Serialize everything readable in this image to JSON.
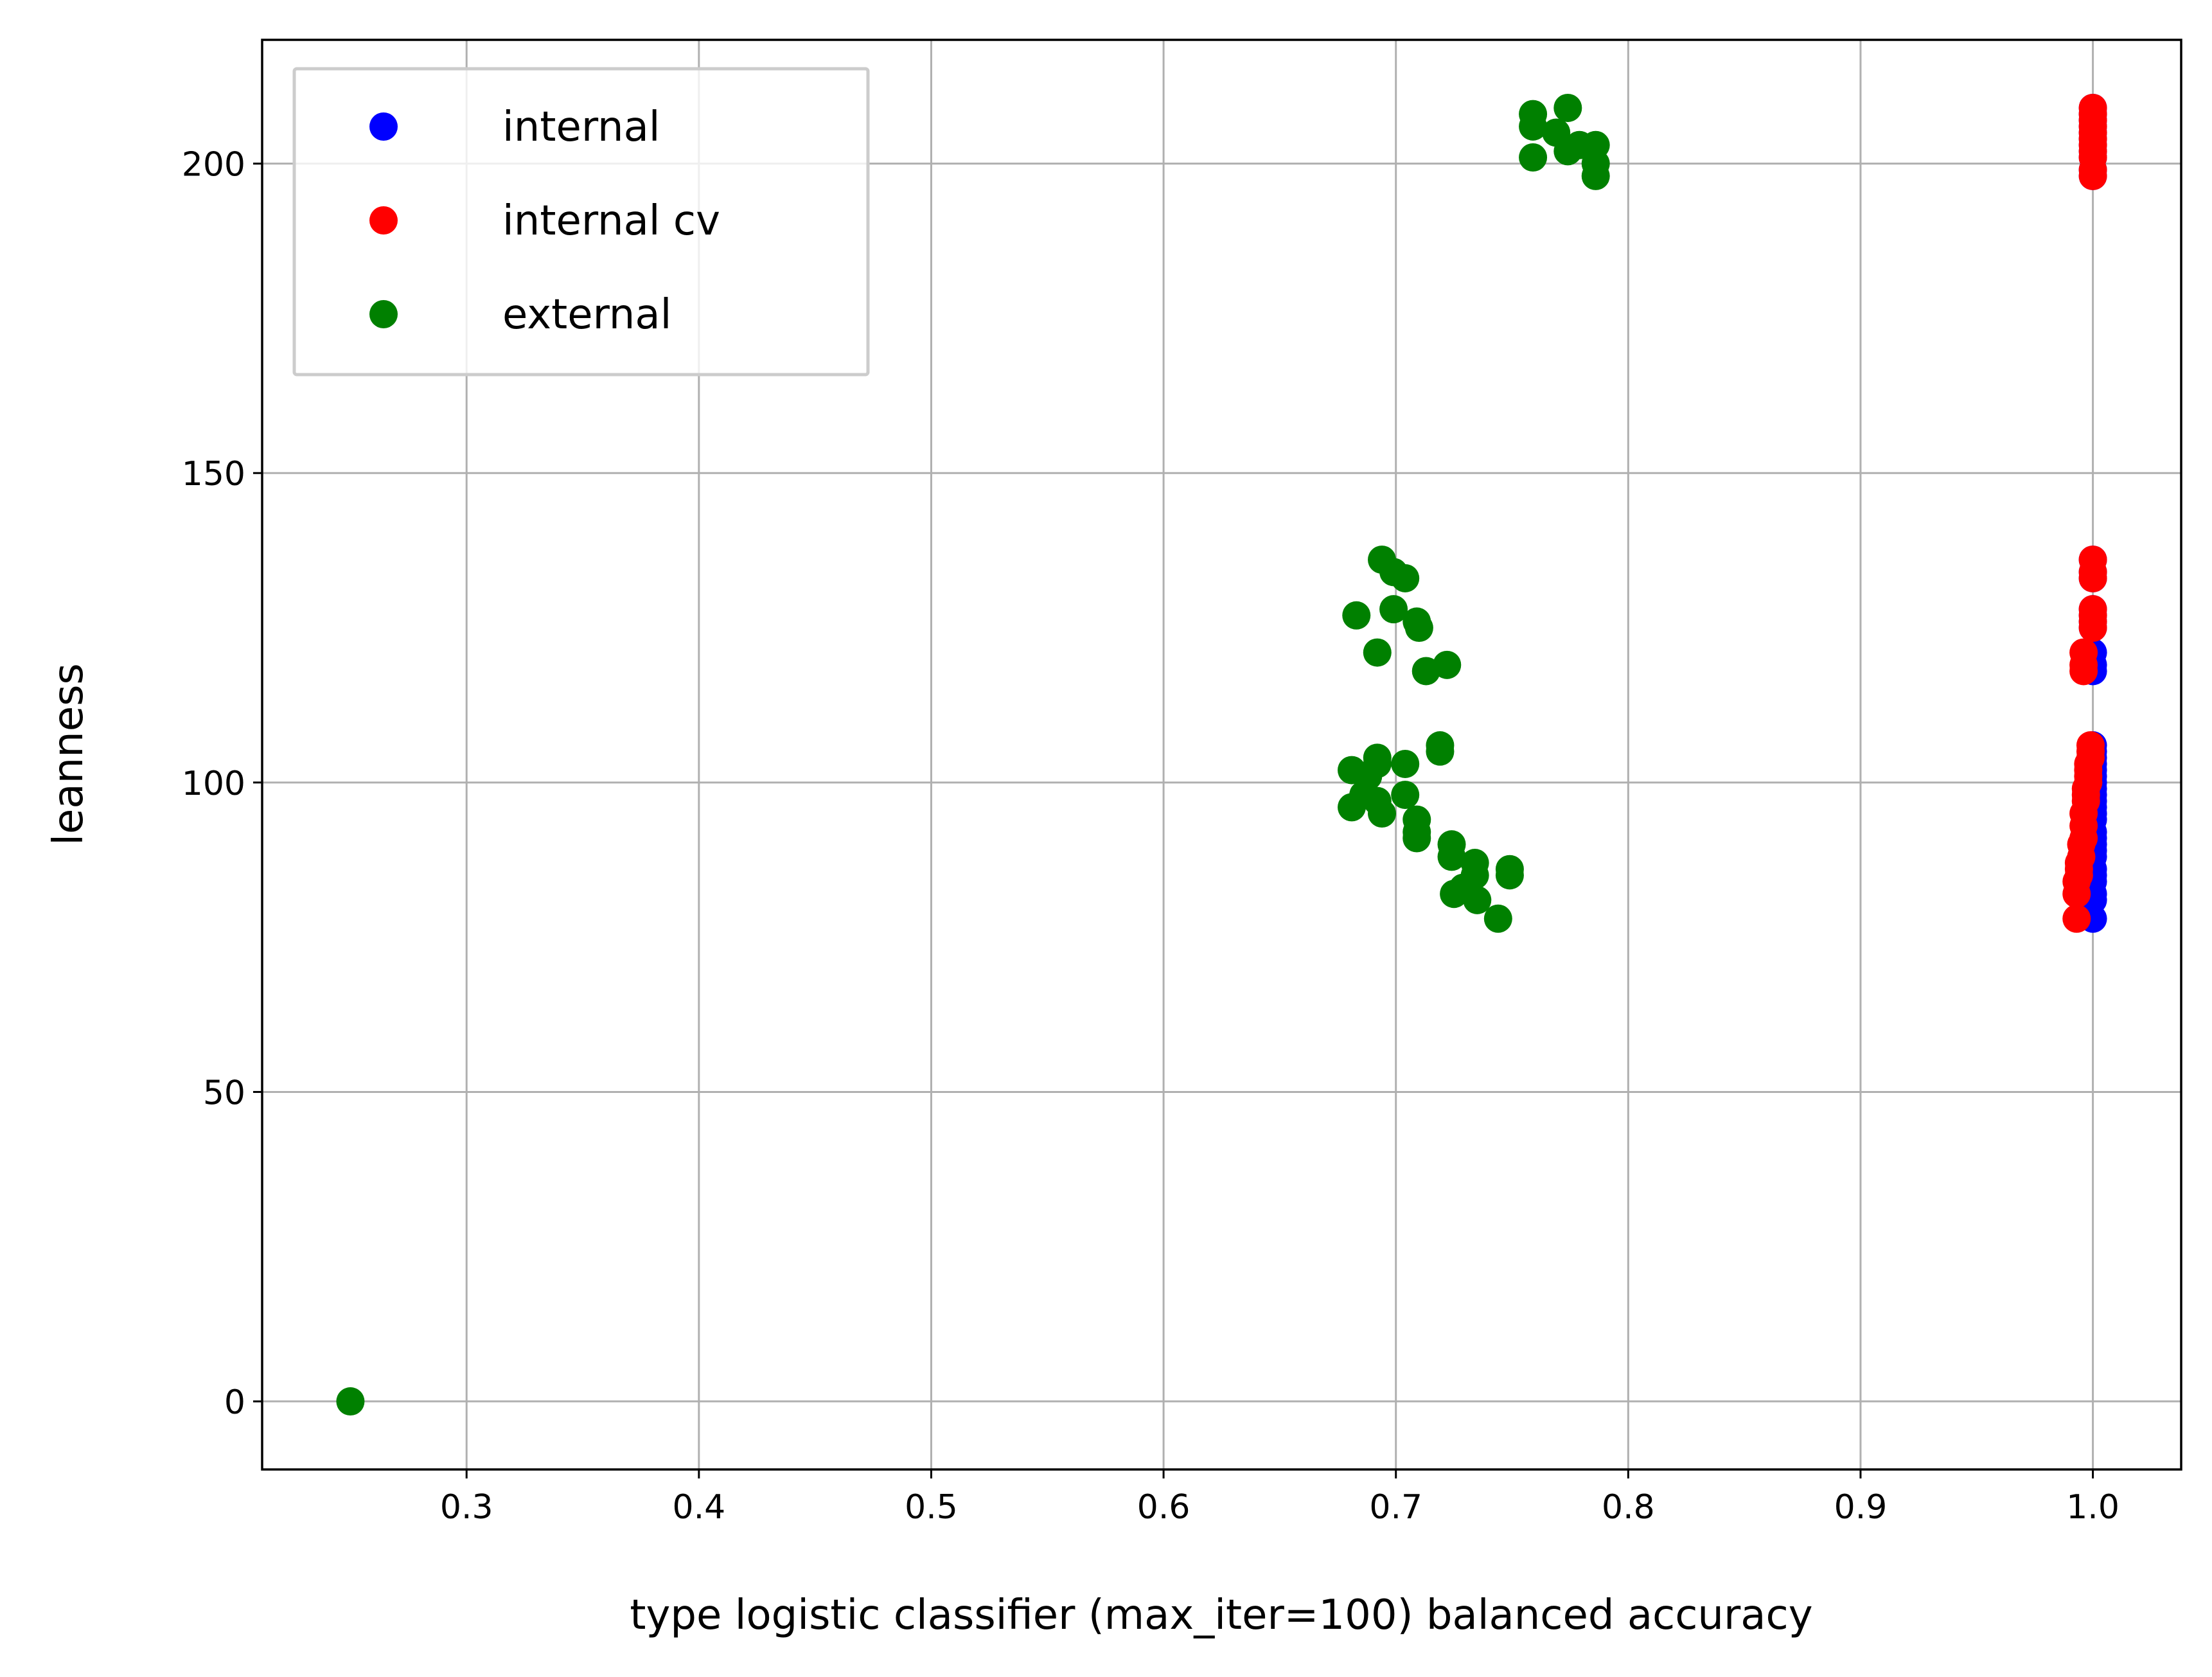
{
  "chart_data": {
    "type": "scatter",
    "xlabel": "type logistic classifier (max_iter=100) balanced accuracy",
    "ylabel": "leanness",
    "xlim": [
      0.212,
      1.038
    ],
    "ylim": [
      -11,
      220
    ],
    "xticks": [
      0.3,
      0.4,
      0.5,
      0.6,
      0.7,
      0.8,
      0.9,
      1.0
    ],
    "xtick_labels": [
      "0.3",
      "0.4",
      "0.5",
      "0.6",
      "0.7",
      "0.8",
      "0.9",
      "1.0"
    ],
    "yticks": [
      0,
      50,
      100,
      150,
      200
    ],
    "ytick_labels": [
      "0",
      "50",
      "100",
      "150",
      "200"
    ],
    "grid": true,
    "legend": {
      "placement": "top-left"
    },
    "series": [
      {
        "name": "internal",
        "color": "#0000ff",
        "points": [
          [
            1.0,
            78
          ],
          [
            1.0,
            81
          ],
          [
            1.0,
            82
          ],
          [
            1.0,
            84
          ],
          [
            1.0,
            85
          ],
          [
            1.0,
            86
          ],
          [
            1.0,
            88
          ],
          [
            1.0,
            89
          ],
          [
            1.0,
            90
          ],
          [
            1.0,
            91
          ],
          [
            1.0,
            92
          ],
          [
            1.0,
            94
          ],
          [
            1.0,
            95
          ],
          [
            1.0,
            96
          ],
          [
            1.0,
            97
          ],
          [
            1.0,
            98
          ],
          [
            1.0,
            99
          ],
          [
            1.0,
            100
          ],
          [
            1.0,
            101
          ],
          [
            1.0,
            102
          ],
          [
            1.0,
            103
          ],
          [
            1.0,
            104
          ],
          [
            1.0,
            105
          ],
          [
            1.0,
            106
          ],
          [
            1.0,
            118
          ],
          [
            1.0,
            119
          ],
          [
            1.0,
            121
          ],
          [
            1.0,
            125
          ],
          [
            1.0,
            126
          ],
          [
            1.0,
            127
          ],
          [
            1.0,
            128
          ],
          [
            1.0,
            133
          ],
          [
            1.0,
            134
          ],
          [
            1.0,
            136
          ],
          [
            1.0,
            198
          ],
          [
            1.0,
            199
          ],
          [
            1.0,
            201
          ],
          [
            1.0,
            202
          ],
          [
            1.0,
            203
          ],
          [
            1.0,
            204
          ],
          [
            1.0,
            205
          ],
          [
            1.0,
            206
          ],
          [
            1.0,
            207
          ],
          [
            1.0,
            208
          ],
          [
            1.0,
            209
          ]
        ]
      },
      {
        "name": "internal cv",
        "color": "#ff0000",
        "points": [
          [
            0.993,
            78
          ],
          [
            0.993,
            82
          ],
          [
            0.993,
            84
          ],
          [
            0.994,
            85
          ],
          [
            0.994,
            86
          ],
          [
            0.994,
            87
          ],
          [
            0.995,
            88
          ],
          [
            0.995,
            90
          ],
          [
            0.996,
            91
          ],
          [
            0.996,
            93
          ],
          [
            0.996,
            95
          ],
          [
            0.997,
            97
          ],
          [
            0.997,
            98
          ],
          [
            0.997,
            99
          ],
          [
            0.998,
            100
          ],
          [
            0.998,
            101
          ],
          [
            0.998,
            102
          ],
          [
            0.998,
            103
          ],
          [
            0.999,
            104
          ],
          [
            0.999,
            105
          ],
          [
            0.999,
            106
          ],
          [
            0.996,
            118
          ],
          [
            0.996,
            119
          ],
          [
            0.996,
            121
          ],
          [
            1.0,
            125
          ],
          [
            1.0,
            126
          ],
          [
            1.0,
            127
          ],
          [
            1.0,
            128
          ],
          [
            1.0,
            133
          ],
          [
            1.0,
            134
          ],
          [
            1.0,
            136
          ],
          [
            1.0,
            198
          ],
          [
            1.0,
            199
          ],
          [
            1.0,
            201
          ],
          [
            1.0,
            202
          ],
          [
            1.0,
            203
          ],
          [
            1.0,
            204
          ],
          [
            1.0,
            205
          ],
          [
            1.0,
            206
          ],
          [
            1.0,
            207
          ],
          [
            1.0,
            208
          ],
          [
            1.0,
            209
          ]
        ]
      },
      {
        "name": "external",
        "color": "#008000",
        "points": [
          [
            0.25,
            0
          ],
          [
            0.681,
            96
          ],
          [
            0.681,
            102
          ],
          [
            0.686,
            98
          ],
          [
            0.688,
            101
          ],
          [
            0.692,
            104
          ],
          [
            0.692,
            103
          ],
          [
            0.692,
            97
          ],
          [
            0.694,
            95
          ],
          [
            0.704,
            98
          ],
          [
            0.704,
            103
          ],
          [
            0.709,
            94
          ],
          [
            0.709,
            92
          ],
          [
            0.709,
            91
          ],
          [
            0.719,
            105
          ],
          [
            0.719,
            106
          ],
          [
            0.724,
            90
          ],
          [
            0.724,
            88
          ],
          [
            0.725,
            82
          ],
          [
            0.729,
            83
          ],
          [
            0.734,
            87
          ],
          [
            0.734,
            85
          ],
          [
            0.735,
            81
          ],
          [
            0.744,
            78
          ],
          [
            0.749,
            86
          ],
          [
            0.749,
            85
          ],
          [
            0.683,
            127
          ],
          [
            0.692,
            121
          ],
          [
            0.694,
            136
          ],
          [
            0.699,
            128
          ],
          [
            0.699,
            134
          ],
          [
            0.704,
            133
          ],
          [
            0.709,
            126
          ],
          [
            0.71,
            125
          ],
          [
            0.713,
            118
          ],
          [
            0.722,
            119
          ],
          [
            0.759,
            201
          ],
          [
            0.759,
            206
          ],
          [
            0.759,
            208
          ],
          [
            0.769,
            205
          ],
          [
            0.774,
            209
          ],
          [
            0.774,
            202
          ],
          [
            0.779,
            203
          ],
          [
            0.786,
            203
          ],
          [
            0.786,
            200
          ],
          [
            0.786,
            198
          ]
        ]
      }
    ]
  }
}
